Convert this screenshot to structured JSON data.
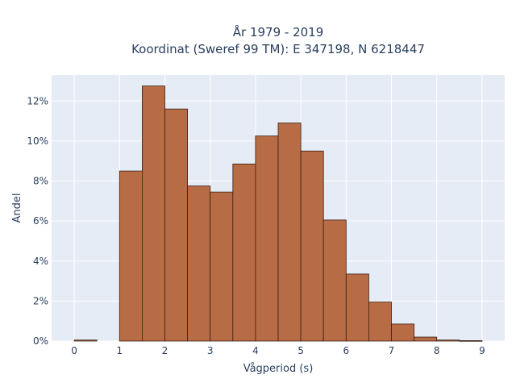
{
  "chart_data": {
    "type": "bar",
    "title_line1": "År 1979 - 2019",
    "title_line2": "Koordinat (Sweref 99 TM): E 347198, N 6218447",
    "xlabel": "Vågperiod (s)",
    "ylabel": "Andel",
    "bin_width": 0.5,
    "x_ticks": [
      "0",
      "1",
      "2",
      "3",
      "4",
      "5",
      "6",
      "7",
      "8",
      "9"
    ],
    "y_ticks": [
      "0%",
      "2%",
      "4%",
      "6%",
      "8%",
      "10%",
      "12%"
    ],
    "xlim": [
      -0.5,
      9.5
    ],
    "ylim": [
      0,
      13.3
    ],
    "bars": [
      {
        "x0": 0.0,
        "value": 0.05
      },
      {
        "x0": 1.0,
        "value": 8.5
      },
      {
        "x0": 1.5,
        "value": 12.75
      },
      {
        "x0": 2.0,
        "value": 11.6
      },
      {
        "x0": 2.5,
        "value": 7.75
      },
      {
        "x0": 3.0,
        "value": 7.45
      },
      {
        "x0": 3.5,
        "value": 8.85
      },
      {
        "x0": 4.0,
        "value": 10.25
      },
      {
        "x0": 4.5,
        "value": 10.9
      },
      {
        "x0": 5.0,
        "value": 9.5
      },
      {
        "x0": 5.5,
        "value": 6.05
      },
      {
        "x0": 6.0,
        "value": 3.35
      },
      {
        "x0": 6.5,
        "value": 1.95
      },
      {
        "x0": 7.0,
        "value": 0.85
      },
      {
        "x0": 7.5,
        "value": 0.2
      },
      {
        "x0": 8.0,
        "value": 0.05
      },
      {
        "x0": 8.5,
        "value": 0.02
      }
    ],
    "grid": true,
    "colors": {
      "bar_fill": "#b86c45",
      "bar_stroke": "#3a2012",
      "plot_bg": "#e5ecf6",
      "grid": "#ffffff"
    }
  }
}
